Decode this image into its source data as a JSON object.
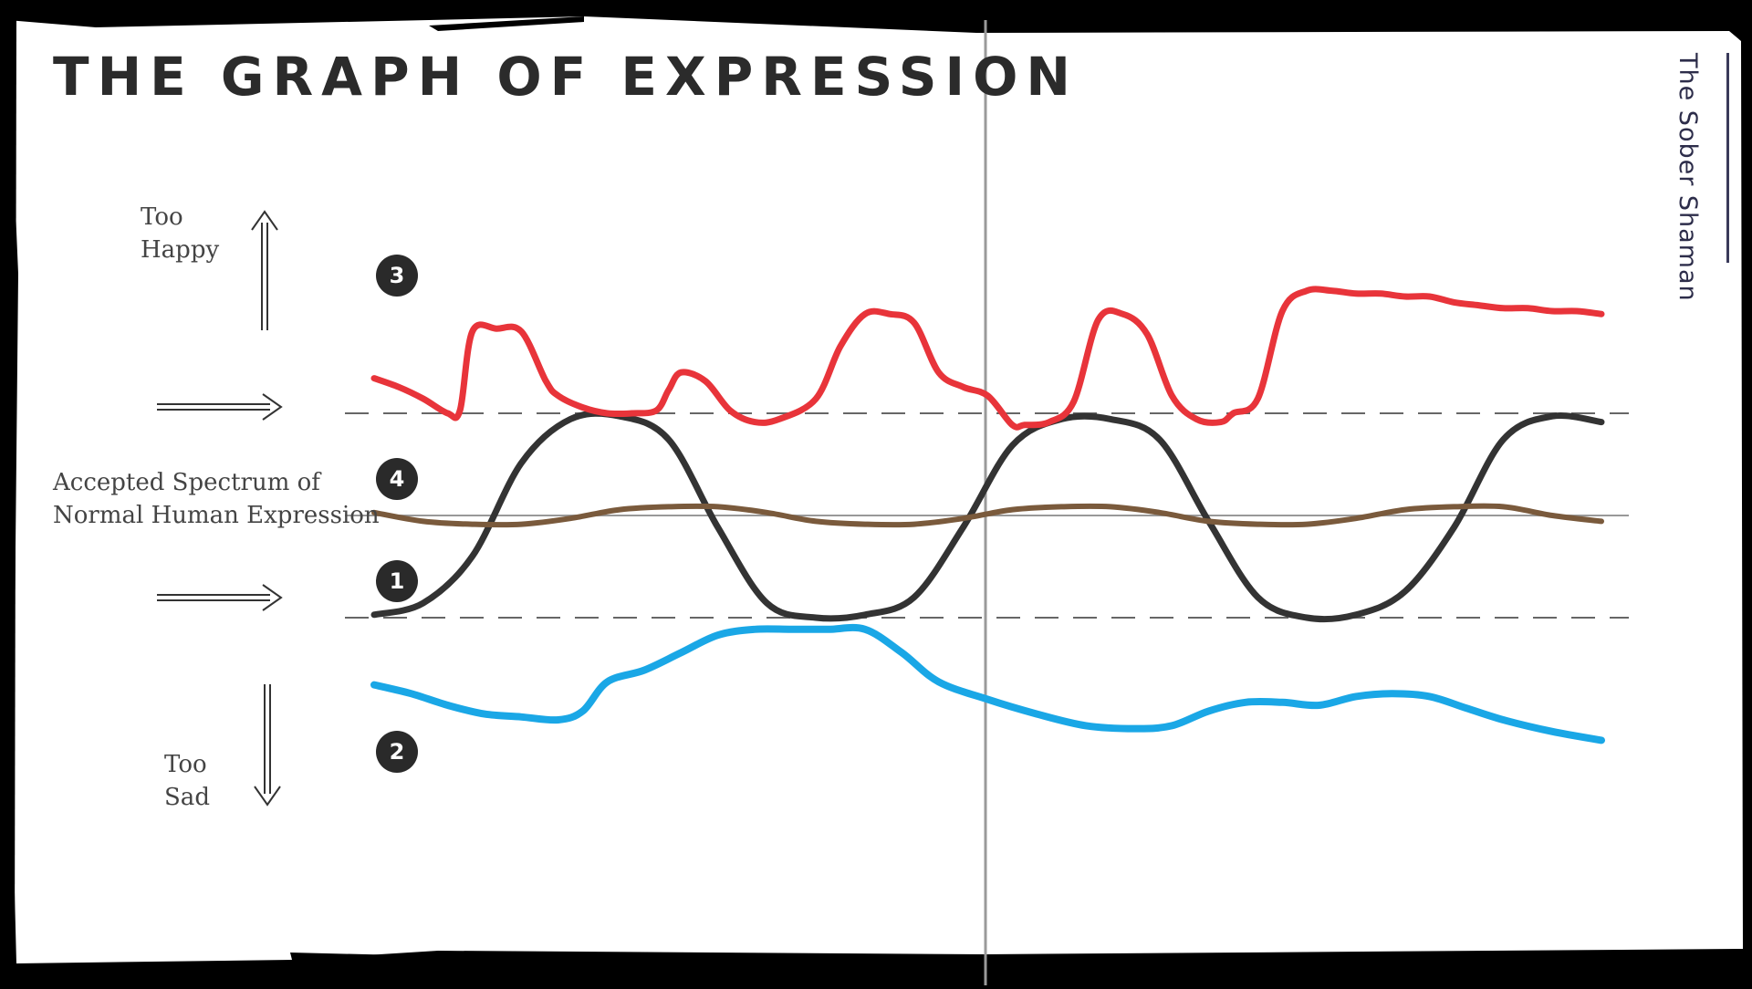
{
  "title": "THE GRAPH OF EXPRESSION",
  "labels": {
    "too_happy_1": "Too",
    "too_happy_2": "Happy",
    "accepted_1": "Accepted Spectrum of",
    "accepted_2": "Normal Human Expression",
    "too_sad_1": "Too",
    "too_sad_2": "Sad"
  },
  "brand": "The Sober Shaman",
  "colors": {
    "series_1": "#333333",
    "series_2": "#1aa7e6",
    "series_3": "#e8343a",
    "series_4": "#7a5a3c",
    "guides": "#666666"
  },
  "icons": [
    "arrow-up-icon",
    "arrow-right-icon",
    "arrow-right-icon",
    "arrow-down-icon"
  ],
  "chart_data": {
    "type": "line",
    "title": "THE GRAPH OF EXPRESSION",
    "xlabel": "",
    "ylabel": "",
    "xlim": [
      0,
      100
    ],
    "ylim": [
      -100,
      100
    ],
    "grid": false,
    "bands": {
      "upper": 35,
      "center": 0,
      "lower": -35
    },
    "series": [
      {
        "name": "1",
        "color": "#333333",
        "x": [
          0,
          4,
          8,
          12,
          16,
          20,
          24,
          28,
          32,
          36,
          40,
          44,
          48,
          52,
          56,
          60,
          64,
          68,
          72,
          76,
          80,
          84,
          88,
          92,
          96,
          100
        ],
        "values": [
          -34,
          -30,
          -14,
          18,
          33,
          34,
          26,
          -4,
          -30,
          -35,
          -34,
          -28,
          -4,
          24,
          33,
          33,
          26,
          -2,
          -28,
          -35,
          -34,
          -26,
          -4,
          26,
          34,
          32
        ]
      },
      {
        "name": "2",
        "color": "#1aa7e6",
        "x": [
          0,
          3,
          6,
          9,
          12,
          15,
          17,
          19,
          22,
          25,
          28,
          31,
          34,
          37,
          40,
          43,
          46,
          50,
          54,
          58,
          62,
          65,
          68,
          71,
          74,
          77,
          80,
          83,
          86,
          89,
          92,
          96,
          100
        ],
        "values": [
          -58,
          -61,
          -65,
          -68,
          -69,
          -70,
          -67,
          -57,
          -53,
          -47,
          -41,
          -39,
          -39,
          -39,
          -39,
          -47,
          -57,
          -63,
          -68,
          -72,
          -73,
          -72,
          -67,
          -64,
          -64,
          -65,
          -62,
          -61,
          -62,
          -66,
          -70,
          -74,
          -77
        ]
      },
      {
        "name": "3",
        "color": "#e8343a",
        "x": [
          0,
          2,
          4,
          6,
          7,
          8,
          10,
          12,
          14,
          15,
          17,
          19,
          21,
          23,
          24,
          25,
          27,
          29,
          31,
          33,
          36,
          38,
          40,
          42,
          44,
          46,
          48,
          50,
          52,
          53,
          55,
          57,
          59,
          61,
          63,
          65,
          67,
          69,
          70,
          72,
          74,
          76,
          78,
          80,
          82,
          84,
          86,
          88,
          90,
          92,
          94,
          96,
          98,
          100
        ],
        "values": [
          47,
          44,
          40,
          35,
          36,
          63,
          64,
          63,
          46,
          41,
          37,
          35,
          35,
          36,
          43,
          49,
          46,
          36,
          32,
          33,
          40,
          58,
          69,
          69,
          66,
          49,
          44,
          41,
          31,
          31,
          32,
          39,
          67,
          69,
          62,
          41,
          33,
          32,
          35,
          40,
          70,
          77,
          77,
          76,
          76,
          75,
          75,
          73,
          72,
          71,
          71,
          70,
          70,
          69
        ]
      },
      {
        "name": "4",
        "color": "#7a5a3c",
        "x": [
          0,
          4,
          8,
          12,
          16,
          20,
          24,
          28,
          32,
          36,
          40,
          44,
          48,
          52,
          56,
          60,
          64,
          68,
          72,
          76,
          80,
          84,
          88,
          92,
          96,
          100
        ],
        "values": [
          1,
          -2,
          -3,
          -3,
          -1,
          2,
          3,
          3,
          1,
          -2,
          -3,
          -3,
          -1,
          2,
          3,
          3,
          1,
          -2,
          -3,
          -3,
          -1,
          2,
          3,
          3,
          0,
          -2
        ]
      }
    ]
  }
}
